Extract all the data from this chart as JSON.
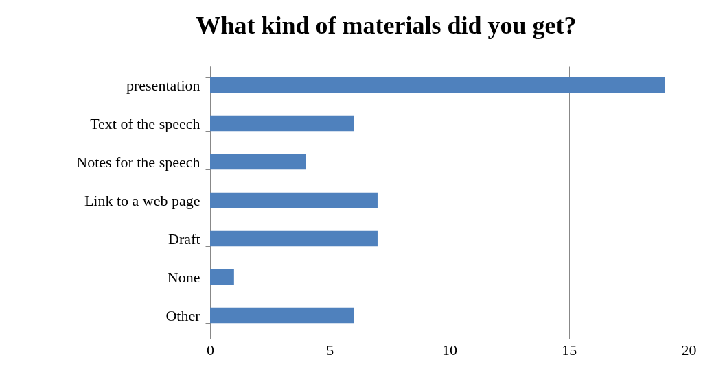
{
  "chart_data": {
    "type": "bar",
    "orientation": "horizontal",
    "title": "What kind of materials did you get?",
    "categories": [
      "presentation",
      "Text of the speech",
      "Notes for the speech",
      "Link to a web page",
      "Draft",
      "None",
      "Other"
    ],
    "values": [
      19,
      6,
      4,
      7,
      7,
      1,
      6
    ],
    "color": "#4f81bd",
    "xlim": [
      0,
      20
    ],
    "xticks": [
      0,
      5,
      10,
      15,
      20
    ],
    "grid": "x"
  }
}
